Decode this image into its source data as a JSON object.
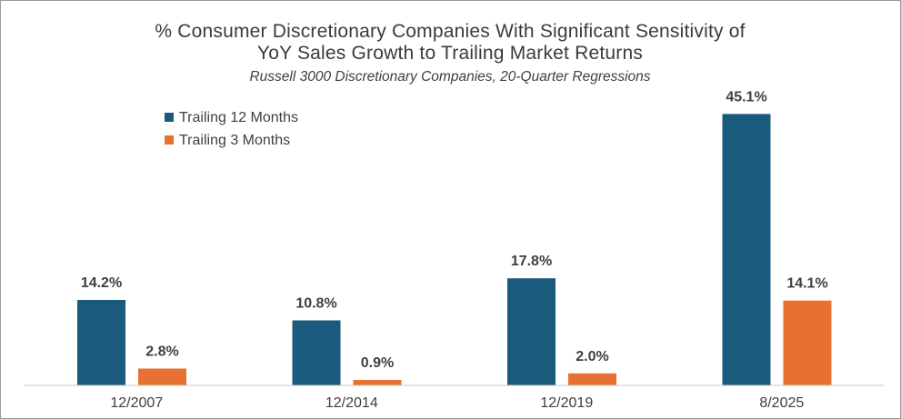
{
  "chart_data": {
    "type": "bar",
    "title_lines": [
      "% Consumer Discretionary Companies With Significant Sensitivity of",
      "YoY Sales Growth to Trailing Market Returns"
    ],
    "subtitle": "Russell 3000 Discretionary Companies, 20-Quarter Regressions",
    "categories": [
      "12/2007",
      "12/2014",
      "12/2019",
      "8/2025"
    ],
    "series": [
      {
        "name": "Trailing 12 Months",
        "color": "#1a5a7d",
        "values": [
          14.2,
          10.8,
          17.8,
          45.1
        ],
        "labels": [
          "14.2%",
          "10.8%",
          "17.8%",
          "45.1%"
        ]
      },
      {
        "name": "Trailing 3 Months",
        "color": "#e87030",
        "values": [
          2.8,
          0.9,
          2.0,
          14.1
        ],
        "labels": [
          "2.8%",
          "0.9%",
          "2.0%",
          "14.1%"
        ]
      }
    ],
    "ylim": [
      0,
      50
    ],
    "grid": false,
    "legend_position": "top-left",
    "axis_color": "#c8c8c8"
  }
}
